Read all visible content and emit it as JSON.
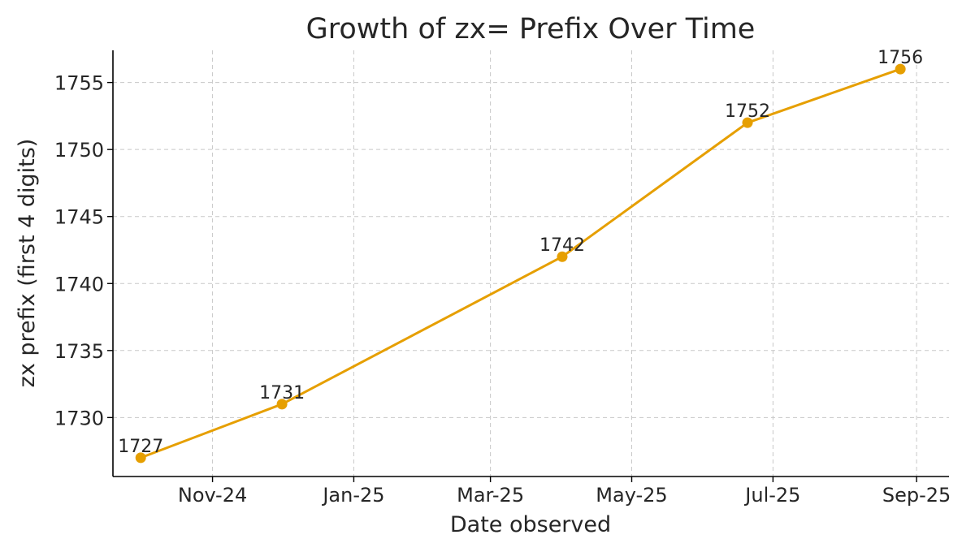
{
  "chart_data": {
    "type": "line",
    "title": "Growth of zx= Prefix Over Time",
    "xlabel": "Date observed",
    "ylabel": "zx prefix (first 4 digits)",
    "x_ticks": [
      {
        "date": "2024-11-01",
        "label": "Nov-24"
      },
      {
        "date": "2025-01-01",
        "label": "Jan-25"
      },
      {
        "date": "2025-03-01",
        "label": "Mar-25"
      },
      {
        "date": "2025-05-01",
        "label": "May-25"
      },
      {
        "date": "2025-07-01",
        "label": "Jul-25"
      },
      {
        "date": "2025-09-01",
        "label": "Sep-25"
      }
    ],
    "y_ticks": [
      1730,
      1735,
      1740,
      1745,
      1750,
      1755
    ],
    "xlim": [
      "2024-09-19",
      "2025-09-15"
    ],
    "ylim": [
      1725.6,
      1757.4
    ],
    "grid": true,
    "color": "#E69F00",
    "series": [
      {
        "points": [
          {
            "x": "2024-10-01",
            "y": 1727,
            "label": "1727"
          },
          {
            "x": "2024-12-01",
            "y": 1731,
            "label": "1731"
          },
          {
            "x": "2025-04-01",
            "y": 1742,
            "label": "1742"
          },
          {
            "x": "2025-06-20",
            "y": 1752,
            "label": "1752"
          },
          {
            "x": "2025-08-25",
            "y": 1756,
            "label": "1756"
          }
        ]
      }
    ]
  }
}
